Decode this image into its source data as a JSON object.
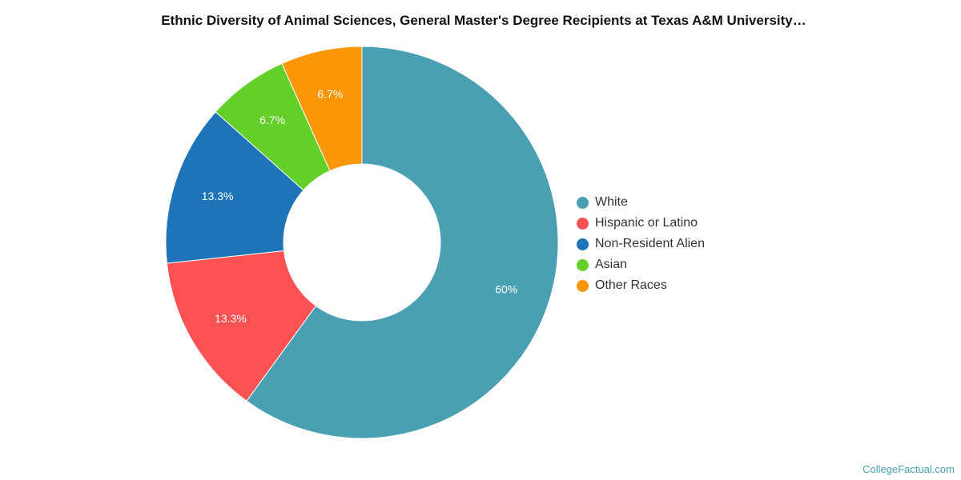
{
  "chart_data": {
    "type": "pie",
    "title": "Ethnic Diversity of Animal Sciences, General Master's Degree Recipients at Texas A&M University…",
    "series": [
      {
        "name": "White",
        "value": 60,
        "label": "60%",
        "color": "#4aa0b2"
      },
      {
        "name": "Hispanic or Latino",
        "value": 13.3,
        "label": "13.3%",
        "color": "#fc5254"
      },
      {
        "name": "Non-Resident Alien",
        "value": 13.3,
        "label": "13.3%",
        "color": "#1f73b7"
      },
      {
        "name": "Asian",
        "value": 6.7,
        "label": "6.7%",
        "color": "#63d02a"
      },
      {
        "name": "Other Races",
        "value": 6.7,
        "label": "6.7%",
        "color": "#f99704"
      }
    ],
    "legend_position": "right"
  },
  "credit": "CollegeFactual.com"
}
